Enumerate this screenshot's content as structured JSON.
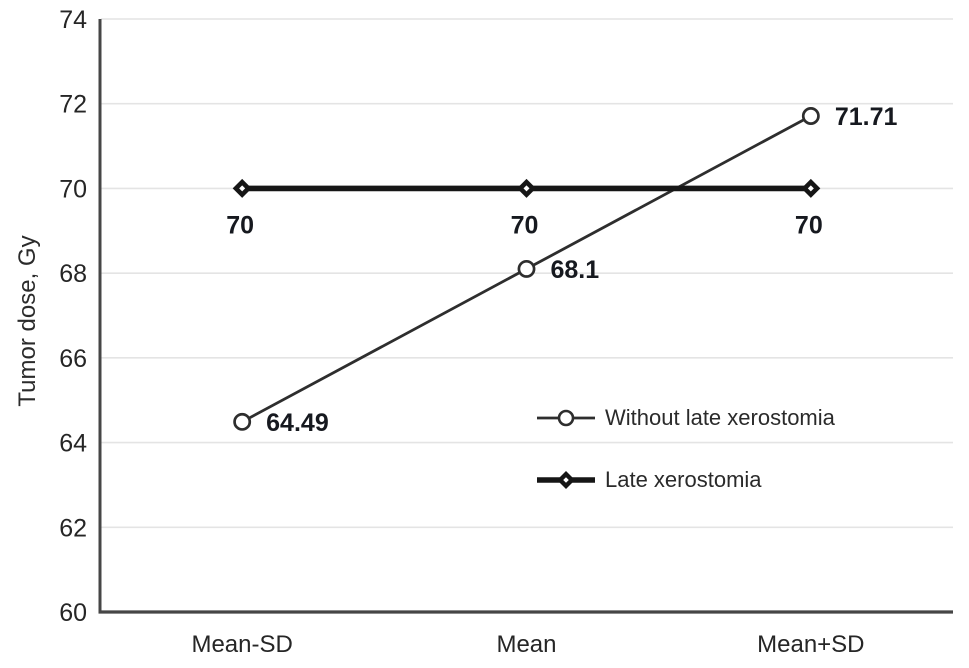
{
  "chart_data": {
    "type": "line",
    "title": "",
    "xlabel": "",
    "ylabel": "Tumor dose, Gy",
    "categories": [
      "Mean-SD",
      "Mean",
      "Mean+SD"
    ],
    "series": [
      {
        "name": "Without late xerostomia",
        "values": [
          64.49,
          68.1,
          71.71
        ],
        "point_labels": [
          "64.49",
          "68.1",
          "71.71"
        ],
        "marker": "open-circle",
        "line_style": "thin"
      },
      {
        "name": "Late xerostomia",
        "values": [
          70,
          70,
          70
        ],
        "point_labels": [
          "70",
          "70",
          "70"
        ],
        "marker": "diamond",
        "line_style": "thick"
      }
    ],
    "ylim": [
      60,
      74
    ],
    "yticks": [
      60,
      62,
      64,
      66,
      68,
      70,
      72,
      74
    ],
    "grid": "horizontal",
    "legend_position": "inside lower right",
    "colors": {
      "series_line": "#2e2e2e",
      "thick_line": "#161616",
      "grid": "#e4e4e4",
      "axis": "#464646",
      "tick_text": "#262626",
      "data_label_text": "#16191f",
      "marker_fill": "#ffffff"
    }
  }
}
